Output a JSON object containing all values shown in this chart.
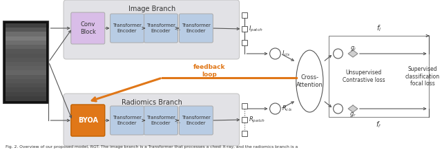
{
  "fig_width": 6.4,
  "fig_height": 2.18,
  "dpi": 100,
  "bg_color": "#ffffff",
  "caption": "Fig. 2. Overview of our proposed model, RGT. The image branch is a Transformer that processes a chest X-ray, and the radiomics branch is a",
  "image_branch_label": "Image Branch",
  "radiomics_branch_label": "Radiomics Branch",
  "conv_block_label": "Conv\nBlock",
  "byoa_label": "BYOA",
  "transformer_encoder_label": "Transformer\nEncoder",
  "cross_attention_label": "Cross-\nAttention",
  "unsupervised_loss_label": "Unsupervised\nContrastive loss",
  "supervised_loss_label": "Supervised\nclassification\nfocal loss",
  "feedback_label": "feedback\nloop",
  "I_patch_label": "$I_{patch}$",
  "I_cls_label": "$I_{cls}$",
  "R_cls_label": "$R_{cls}$",
  "R_patch_label": "$R_{patch}$",
  "g_i_label": "$g_i$",
  "g_r_label": "$g_r$",
  "f_i_label": "$f_i$",
  "f_r_label": "$f_r$",
  "conv_color": "#d9bde8",
  "byoa_color": "#e07718",
  "transformer_color": "#b8cce4",
  "branch_bg": "#e2e2e6",
  "arrow_color": "#555555",
  "feedback_arrow_color": "#e07718",
  "diamond_color": "#d8d8d8",
  "circle_color": "#ffffff",
  "loss_border_color": "#888888",
  "text_color": "#333333"
}
